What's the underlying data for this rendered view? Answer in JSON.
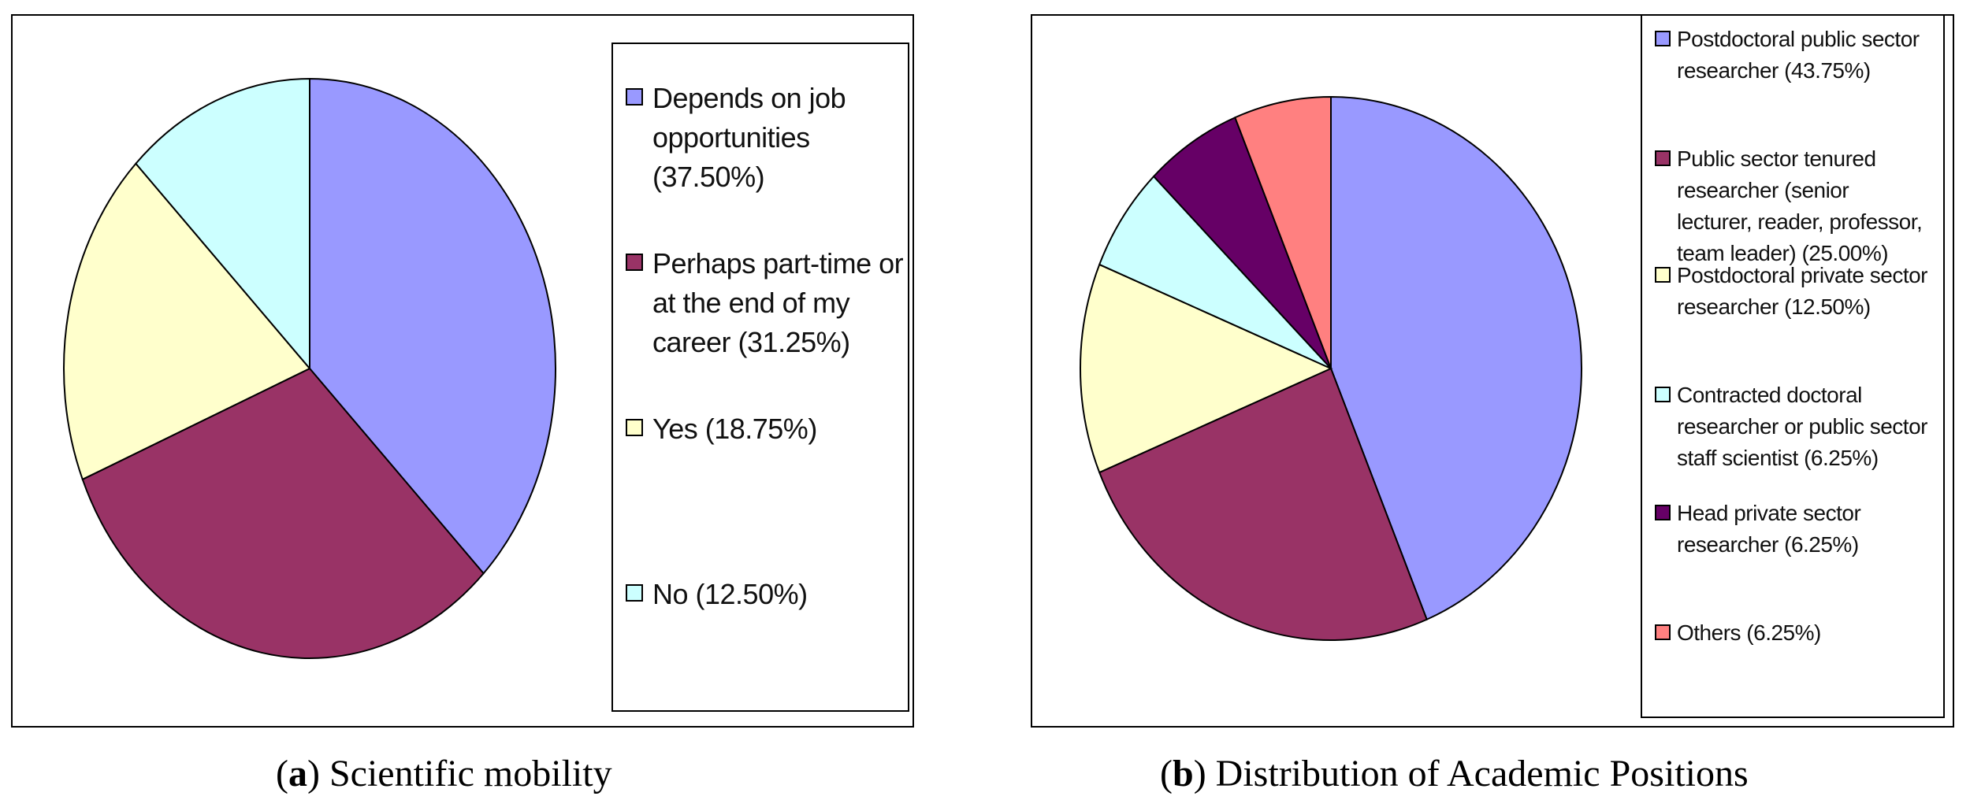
{
  "chart_data": [
    {
      "type": "pie",
      "caption_label": "a",
      "caption_title": "Scientific mobility",
      "categories": [
        "Depends on job opportunities (37.50%)",
        "Perhaps part-time or at the end of my career (31.25%)",
        "Yes (18.75%)",
        "No (12.50%)"
      ],
      "values": [
        37.5,
        31.25,
        18.75,
        12.5
      ],
      "colors": [
        "#9999ff",
        "#993366",
        "#ffffcc",
        "#ccffff"
      ],
      "legend": [
        "Depends on job\nopportunities\n(37.50%)",
        "Perhaps part-time or\nat the end of my\ncareer (31.25%)",
        "Yes (18.75%)",
        "No (12.50%)"
      ],
      "legend_placement": "right"
    },
    {
      "type": "pie",
      "caption_label": "b",
      "caption_title": "Distribution of Academic Positions",
      "categories": [
        "Postdoctoral public sector researcher (43.75%)",
        "Public sector tenured researcher (senior lecturer, reader, professor, team leader) (25.00%)",
        "Postdoctoral private sector researcher (12.50%)",
        "Contracted doctoral researcher or public sector staff scientist (6.25%)",
        "Head private sector researcher (6.25%)",
        "Others (6.25%)"
      ],
      "values": [
        43.75,
        25.0,
        12.5,
        6.25,
        6.25,
        6.25
      ],
      "colors": [
        "#9999ff",
        "#993366",
        "#ffffcc",
        "#ccffff",
        "#660066",
        "#ff8080"
      ],
      "legend": [
        "Postdoctoral public sector\nresearcher (43.75%)",
        "Public sector tenured\nresearcher (senior\nlecturer, reader, professor,\nteam leader) (25.00%)",
        "Postdoctoral private sector\nresearcher  (12.50%)",
        "Contracted doctoral\nresearcher or public sector\nstaff scientist (6.25%)",
        "Head private sector\nresearcher (6.25%)",
        "Others (6.25%)"
      ],
      "legend_placement": "right"
    }
  ]
}
